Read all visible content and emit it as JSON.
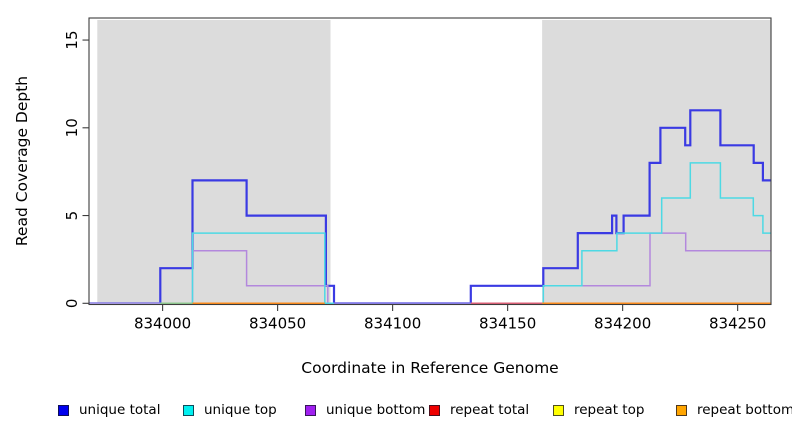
{
  "figure": {
    "x_axis_label": "Coordinate in Reference Genome",
    "y_axis_label": "Read Coverage Depth"
  },
  "chart_data": {
    "type": "line",
    "step_mode": "after",
    "title": "",
    "xlabel": "Coordinate in Reference Genome",
    "ylabel": "Read Coverage Depth",
    "xlim": [
      833968,
      834264.5
    ],
    "ylim": [
      0,
      16.3
    ],
    "xticks": [
      834000,
      834050,
      834100,
      834150,
      834200,
      834250
    ],
    "yticks": [
      0,
      5,
      10,
      15
    ],
    "grid": false,
    "legend_position": "bottom",
    "shaded_regions": [
      {
        "from": 833971.6,
        "to": 834073,
        "color": "#dcdcdc"
      },
      {
        "from": 834165,
        "to": 834264.5,
        "color": "#dcdcdc"
      }
    ],
    "series": [
      {
        "name": "unique total",
        "color": "#3a3ae3",
        "start_value": 0,
        "steps": [
          [
            833999,
            2
          ],
          [
            834013,
            7
          ],
          [
            834036.5,
            5
          ],
          [
            834071,
            1
          ],
          [
            834074.5,
            0
          ],
          [
            834134,
            1
          ],
          [
            834165.5,
            2
          ],
          [
            834180.5,
            4
          ],
          [
            834195.4,
            5
          ],
          [
            834197.3,
            4
          ],
          [
            834200.4,
            5
          ],
          [
            834211.7,
            8
          ],
          [
            834216.4,
            10
          ],
          [
            834227.2,
            9
          ],
          [
            834229.4,
            11
          ],
          [
            834242.5,
            9
          ],
          [
            834257,
            8
          ],
          [
            834261,
            7
          ]
        ]
      },
      {
        "name": "unique top",
        "color": "#4dd9e4",
        "start_value": 0,
        "steps": [
          [
            834013,
            4
          ],
          [
            834070.5,
            0
          ],
          [
            834165.5,
            1
          ],
          [
            834182.3,
            3
          ],
          [
            834197.5,
            4
          ],
          [
            834217,
            6
          ],
          [
            834229.4,
            8
          ],
          [
            834242.5,
            6
          ],
          [
            834256.8,
            5
          ],
          [
            834261,
            4
          ]
        ]
      },
      {
        "name": "unique bottom",
        "color": "#b388dd",
        "start_value": 0,
        "steps": [
          [
            834013,
            3
          ],
          [
            834036.5,
            1
          ],
          [
            834071.8,
            0
          ],
          [
            834165.5,
            1
          ],
          [
            834211.9,
            4
          ],
          [
            834227.4,
            3
          ]
        ]
      },
      {
        "name": "repeat total",
        "color": "#dd6077",
        "start_value": 0,
        "steps": []
      },
      {
        "name": "repeat top",
        "color": "#f2e648",
        "start_value": 0,
        "steps": []
      },
      {
        "name": "repeat bottom",
        "color": "#ff8c1a",
        "start_value": 0,
        "steps": []
      }
    ],
    "baseline_segments": [
      {
        "from": 833968,
        "to": 833999,
        "color": "#a89ae8"
      },
      {
        "from": 833999,
        "to": 834013,
        "color": "#8fca8f"
      },
      {
        "from": 834013,
        "to": 834070.5,
        "color": "#ff8c1a"
      },
      {
        "from": 834074.5,
        "to": 834134,
        "color": "#8a80ea"
      },
      {
        "from": 834134,
        "to": 834165,
        "color": "#dd6077"
      },
      {
        "from": 834165,
        "to": 834264.5,
        "color": "#ff8c1a"
      }
    ]
  },
  "legend": {
    "items": [
      {
        "label": "unique total",
        "fill": "#0000ee"
      },
      {
        "label": "unique top",
        "fill": "#00f0f0"
      },
      {
        "label": "unique bottom",
        "fill": "#a020f0"
      },
      {
        "label": "repeat total",
        "fill": "#ee0000"
      },
      {
        "label": "repeat top",
        "fill": "#ffff00"
      },
      {
        "label": "repeat bottom",
        "fill": "#ffa500"
      }
    ]
  }
}
